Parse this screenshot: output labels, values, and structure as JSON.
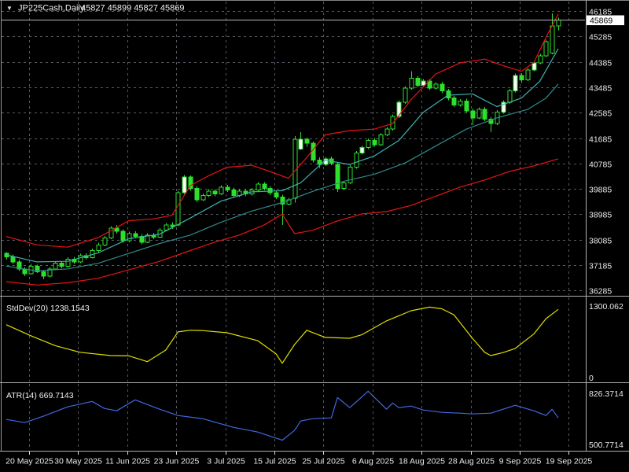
{
  "title": {
    "dropdown_icon": "▼",
    "symbol_period": "JP225Cash,Daily",
    "ohlc": "45827 45899 45827 45869"
  },
  "colors": {
    "background": "#000000",
    "grid": "#5a5a64",
    "border": "#b0b0b0",
    "candle_outline": "#2ee02e",
    "candle_bear_fill": "#2ee02e",
    "candle_bull_fill": "#000000",
    "candle_white_fill": "#ffffff",
    "band_line": "#e81414",
    "ma_fast": "#3fb3aa",
    "ma_slow": "#2e8b88",
    "stddev_line": "#dede00",
    "atr_line": "#4169e1",
    "price_line": "#b8b8b8",
    "price_box_bg": "#ffffff",
    "price_box_text": "#000000"
  },
  "price_axis": {
    "labels": [
      "46185",
      "45285",
      "44385",
      "43485",
      "42585",
      "41685",
      "40785",
      "39885",
      "38985",
      "38085",
      "37185",
      "36285"
    ],
    "current_price": "45869"
  },
  "time_axis": {
    "labels": [
      "20 May 2025",
      "30 May 2025",
      "11 Jun 2025",
      "23 Jun 2025",
      "3 Jul 2025",
      "15 Jul 2025",
      "25 Jul 2025",
      "6 Aug 2025",
      "18 Aug 2025",
      "28 Aug 2025",
      "9 Sep 2025",
      "19 Sep 2025"
    ]
  },
  "panels": {
    "stddev": {
      "label": "StdDev(20) 1238.1543",
      "max": "1300.062",
      "min": "0"
    },
    "atr": {
      "label": "ATR(14) 669.7143",
      "max": "826.3714",
      "min": "500.7714"
    }
  },
  "chart_data": {
    "type": "candlestick",
    "symbol": "JP225Cash",
    "timeframe": "Daily",
    "ohlc_current": {
      "open": 45827,
      "high": 45899,
      "low": 45827,
      "close": 45869
    },
    "y_axis": {
      "top_price": 46185,
      "bottom_price": 36285,
      "grid_step": 900
    },
    "x_axis": {
      "ticks_every_candles": 8
    },
    "candles": [
      [
        37600,
        37650,
        37380,
        37480
      ],
      [
        37480,
        37560,
        37230,
        37300
      ],
      [
        37300,
        37380,
        36980,
        37050
      ],
      [
        37050,
        37120,
        36800,
        36880
      ],
      [
        36880,
        37230,
        36850,
        37150
      ],
      [
        37150,
        37200,
        36900,
        36950
      ],
      [
        36950,
        37020,
        36690,
        36800
      ],
      [
        36800,
        37120,
        36760,
        37050
      ],
      [
        37050,
        37330,
        37000,
        37250
      ],
      [
        37250,
        37330,
        37080,
        37150
      ],
      [
        37150,
        37460,
        37100,
        37400
      ],
      [
        37400,
        37480,
        37230,
        37300
      ],
      [
        37300,
        37590,
        37260,
        37520
      ],
      [
        37520,
        37600,
        37380,
        37450
      ],
      [
        37450,
        37770,
        37420,
        37700
      ],
      [
        37700,
        37980,
        37650,
        37900
      ],
      [
        37900,
        38220,
        37860,
        38150
      ],
      [
        38150,
        38570,
        38100,
        38500
      ],
      [
        38500,
        38600,
        38300,
        38380
      ],
      [
        38380,
        38450,
        37980,
        38050
      ],
      [
        38050,
        38370,
        38000,
        38300
      ],
      [
        38300,
        38380,
        38130,
        38200
      ],
      [
        38200,
        38280,
        37930,
        38000
      ],
      [
        38000,
        38320,
        37960,
        38250
      ],
      [
        38250,
        38330,
        38100,
        38180
      ],
      [
        38180,
        38490,
        38140,
        38420
      ],
      [
        38420,
        38670,
        38380,
        38600
      ],
      [
        38600,
        38700,
        38460,
        38550
      ],
      [
        38600,
        39820,
        38560,
        39750
      ],
      [
        39750,
        40380,
        39700,
        40300
      ],
      [
        40300,
        40360,
        39820,
        39900
      ],
      [
        39900,
        39980,
        39420,
        39500
      ],
      [
        39500,
        39720,
        39450,
        39650
      ],
      [
        39650,
        39870,
        39600,
        39800
      ],
      [
        39800,
        39880,
        39620,
        39700
      ],
      [
        39700,
        40020,
        39660,
        39950
      ],
      [
        39950,
        40030,
        39770,
        39850
      ],
      [
        39850,
        39930,
        39570,
        39650
      ],
      [
        39650,
        39870,
        39600,
        39800
      ],
      [
        39800,
        39880,
        39620,
        39700
      ],
      [
        39700,
        39920,
        39650,
        39850
      ],
      [
        39850,
        40120,
        39800,
        40050
      ],
      [
        40050,
        40130,
        39830,
        39900
      ],
      [
        39900,
        39980,
        39670,
        39750
      ],
      [
        39750,
        39830,
        39520,
        39600
      ],
      [
        39600,
        39680,
        38600,
        39350
      ],
      [
        39350,
        39570,
        39300,
        39500
      ],
      [
        39550,
        41750,
        39400,
        41650
      ],
      [
        41300,
        41900,
        41250,
        41650
      ],
      [
        41650,
        41700,
        41380,
        41500
      ],
      [
        41500,
        41560,
        40820,
        40900
      ],
      [
        40900,
        41000,
        40620,
        40750
      ],
      [
        40750,
        41020,
        40700,
        40950
      ],
      [
        40950,
        41030,
        40720,
        40800
      ],
      [
        40750,
        40820,
        39780,
        39900
      ],
      [
        39900,
        40170,
        39850,
        40100
      ],
      [
        40100,
        40720,
        40050,
        40650
      ],
      [
        40650,
        41220,
        40600,
        41150
      ],
      [
        41150,
        41420,
        41100,
        41350
      ],
      [
        41350,
        41670,
        41300,
        41600
      ],
      [
        41600,
        41680,
        41380,
        41450
      ],
      [
        41450,
        41870,
        41400,
        41800
      ],
      [
        41800,
        42070,
        41750,
        42000
      ],
      [
        42000,
        42520,
        41950,
        42450
      ],
      [
        42450,
        43020,
        42400,
        42950
      ],
      [
        42950,
        43520,
        42900,
        43450
      ],
      [
        43450,
        44050,
        43400,
        43800
      ],
      [
        43800,
        43880,
        43480,
        43550
      ],
      [
        43550,
        43770,
        43500,
        43700
      ],
      [
        43700,
        43780,
        43380,
        43450
      ],
      [
        43450,
        43670,
        43400,
        43600
      ],
      [
        43600,
        43680,
        43280,
        43350
      ],
      [
        43350,
        43430,
        43020,
        43100
      ],
      [
        43100,
        43180,
        42780,
        42850
      ],
      [
        42850,
        43070,
        42800,
        43000
      ],
      [
        43000,
        43080,
        42580,
        42650
      ],
      [
        42650,
        42730,
        42150,
        42400
      ],
      [
        42400,
        42770,
        42350,
        42700
      ],
      [
        42700,
        42780,
        42280,
        42350
      ],
      [
        42350,
        42430,
        41900,
        42200
      ],
      [
        42200,
        42670,
        42150,
        42600
      ],
      [
        42600,
        43020,
        42550,
        42950
      ],
      [
        42950,
        43420,
        42900,
        43350
      ],
      [
        43350,
        43970,
        43300,
        43900
      ],
      [
        43900,
        43980,
        43630,
        43750
      ],
      [
        43750,
        44170,
        43700,
        44100
      ],
      [
        44100,
        44420,
        44050,
        44350
      ],
      [
        44350,
        44670,
        44300,
        44600
      ],
      [
        44600,
        45170,
        44550,
        45100
      ],
      [
        44700,
        46100,
        44650,
        45650
      ],
      [
        45650,
        45950,
        45500,
        45869
      ]
    ],
    "white_body_indices": [
      29,
      48,
      52,
      58,
      64,
      68,
      81,
      83,
      86
    ],
    "overlays": {
      "bb_upper": [
        [
          0,
          38200
        ],
        [
          5,
          37900
        ],
        [
          10,
          37820
        ],
        [
          15,
          38160
        ],
        [
          20,
          38760
        ],
        [
          24,
          38820
        ],
        [
          27,
          38950
        ],
        [
          30,
          40000
        ],
        [
          33,
          40350
        ],
        [
          36,
          40650
        ],
        [
          40,
          40720
        ],
        [
          43,
          40500
        ],
        [
          46,
          40260
        ],
        [
          49,
          41000
        ],
        [
          52,
          41800
        ],
        [
          56,
          41950
        ],
        [
          60,
          42000
        ],
        [
          63,
          42200
        ],
        [
          66,
          43050
        ],
        [
          70,
          43950
        ],
        [
          74,
          44350
        ],
        [
          78,
          44480
        ],
        [
          81,
          44250
        ],
        [
          84,
          44050
        ],
        [
          86,
          44350
        ],
        [
          88,
          45250
        ],
        [
          90,
          46080
        ]
      ],
      "bb_lower": [
        [
          0,
          36600
        ],
        [
          5,
          36480
        ],
        [
          10,
          36560
        ],
        [
          15,
          36720
        ],
        [
          20,
          37020
        ],
        [
          25,
          37320
        ],
        [
          30,
          37700
        ],
        [
          34,
          38000
        ],
        [
          38,
          38250
        ],
        [
          42,
          38600
        ],
        [
          45,
          38990
        ],
        [
          47,
          38300
        ],
        [
          50,
          38420
        ],
        [
          54,
          38750
        ],
        [
          58,
          39000
        ],
        [
          62,
          39080
        ],
        [
          66,
          39300
        ],
        [
          70,
          39620
        ],
        [
          74,
          39950
        ],
        [
          78,
          40200
        ],
        [
          82,
          40500
        ],
        [
          86,
          40700
        ],
        [
          90,
          40950
        ]
      ],
      "ma_fast": [
        [
          0,
          37550
        ],
        [
          5,
          37300
        ],
        [
          10,
          37320
        ],
        [
          15,
          37620
        ],
        [
          20,
          38120
        ],
        [
          25,
          38280
        ],
        [
          30,
          38850
        ],
        [
          35,
          39450
        ],
        [
          40,
          39780
        ],
        [
          45,
          39820
        ],
        [
          48,
          40100
        ],
        [
          52,
          40900
        ],
        [
          56,
          40750
        ],
        [
          60,
          41050
        ],
        [
          64,
          41600
        ],
        [
          68,
          42600
        ],
        [
          72,
          43200
        ],
        [
          76,
          43250
        ],
        [
          80,
          42800
        ],
        [
          84,
          43100
        ],
        [
          87,
          43700
        ],
        [
          90,
          44850
        ]
      ],
      "ma_slow": [
        [
          0,
          37150
        ],
        [
          5,
          36980
        ],
        [
          10,
          37050
        ],
        [
          15,
          37250
        ],
        [
          20,
          37600
        ],
        [
          25,
          37950
        ],
        [
          30,
          38250
        ],
        [
          35,
          38700
        ],
        [
          40,
          39100
        ],
        [
          45,
          39400
        ],
        [
          50,
          39800
        ],
        [
          55,
          40150
        ],
        [
          60,
          40400
        ],
        [
          65,
          40800
        ],
        [
          70,
          41400
        ],
        [
          75,
          42000
        ],
        [
          80,
          42400
        ],
        [
          85,
          42700
        ],
        [
          88,
          43100
        ],
        [
          90,
          43600
        ]
      ]
    },
    "stddev": {
      "name": "StdDev(20)",
      "current": 1238.1543,
      "range": [
        0,
        1300.062
      ],
      "points": [
        [
          0,
          960
        ],
        [
          4,
          760
        ],
        [
          8,
          580
        ],
        [
          12,
          460
        ],
        [
          17,
          400
        ],
        [
          20,
          395
        ],
        [
          23,
          290
        ],
        [
          26,
          500
        ],
        [
          28,
          830
        ],
        [
          30,
          860
        ],
        [
          32,
          855
        ],
        [
          36,
          815
        ],
        [
          41,
          670
        ],
        [
          44,
          430
        ],
        [
          45,
          260
        ],
        [
          47,
          600
        ],
        [
          49,
          860
        ],
        [
          52,
          730
        ],
        [
          56,
          715
        ],
        [
          58,
          780
        ],
        [
          62,
          1030
        ],
        [
          66,
          1215
        ],
        [
          69,
          1280
        ],
        [
          71,
          1250
        ],
        [
          73,
          1140
        ],
        [
          76,
          715
        ],
        [
          78,
          460
        ],
        [
          79,
          400
        ],
        [
          81,
          455
        ],
        [
          83,
          530
        ],
        [
          86,
          790
        ],
        [
          88,
          1070
        ],
        [
          90,
          1238.15
        ]
      ]
    },
    "atr": {
      "name": "ATR(14)",
      "current": 669.7143,
      "range": [
        500.7714,
        826.3714
      ],
      "points": [
        [
          0,
          660
        ],
        [
          3,
          640
        ],
        [
          6,
          680
        ],
        [
          10,
          740
        ],
        [
          14,
          775
        ],
        [
          16,
          730
        ],
        [
          18,
          715
        ],
        [
          21,
          785
        ],
        [
          25,
          725
        ],
        [
          28,
          685
        ],
        [
          32,
          665
        ],
        [
          37,
          610
        ],
        [
          41,
          580
        ],
        [
          45,
          528
        ],
        [
          47,
          590
        ],
        [
          48,
          650
        ],
        [
          50,
          665
        ],
        [
          53,
          670
        ],
        [
          54,
          800
        ],
        [
          56,
          735
        ],
        [
          59,
          840
        ],
        [
          62,
          725
        ],
        [
          63,
          765
        ],
        [
          64,
          735
        ],
        [
          66,
          745
        ],
        [
          68,
          720
        ],
        [
          71,
          705
        ],
        [
          74,
          700
        ],
        [
          76,
          695
        ],
        [
          79,
          700
        ],
        [
          83,
          750
        ],
        [
          86,
          715
        ],
        [
          88,
          685
        ],
        [
          89,
          725
        ],
        [
          90,
          669.71
        ]
      ]
    }
  }
}
